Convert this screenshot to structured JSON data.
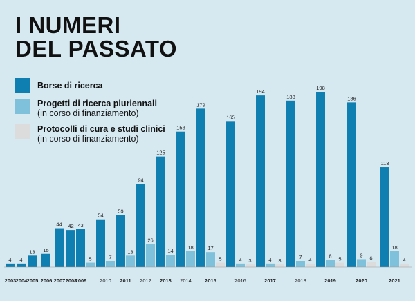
{
  "title_line1": "I NUMERI",
  "title_line2": "DEL PASSATO",
  "colors": {
    "background": "#d6e9f1",
    "borse": "#0f7eb0",
    "progetti": "#7fc0da",
    "protocolli": "#dcdcdc"
  },
  "legend": [
    {
      "label": "Borse di ricerca",
      "sub": "",
      "color": "#0f7eb0"
    },
    {
      "label": "Progetti di ricerca pluriennali",
      "sub": "(in corso di finanziamento)",
      "color": "#7fc0da"
    },
    {
      "label": "Protocolli di cura e studi clinici",
      "sub": "(in corso di finanziamento)",
      "color": "#dcdcdc"
    }
  ],
  "chart_data": {
    "type": "bar",
    "categories": [
      "2003",
      "2004",
      "2005",
      "2006",
      "2007",
      "2008",
      "2009",
      "2010",
      "2011",
      "2012",
      "2013",
      "2014",
      "2015",
      "2016",
      "2017",
      "2018",
      "2019",
      "2020",
      "2021"
    ],
    "bold_categories": [
      "2003",
      "2004",
      "2005",
      "2006",
      "2007",
      "2008",
      "2009",
      "2011",
      "2013",
      "2015",
      "2017",
      "2019",
      "2020",
      "2021"
    ],
    "series": [
      {
        "name": "Borse di ricerca",
        "values": [
          4,
          4,
          13,
          15,
          44,
          42,
          43,
          54,
          59,
          94,
          125,
          153,
          179,
          165,
          194,
          188,
          198,
          186,
          113
        ]
      },
      {
        "name": "Progetti di ricerca pluriennali",
        "values": [
          null,
          null,
          null,
          null,
          null,
          null,
          5,
          7,
          13,
          26,
          14,
          18,
          17,
          4,
          4,
          7,
          8,
          9,
          18
        ]
      },
      {
        "name": "Protocolli di cura e studi clinici",
        "values": [
          null,
          null,
          null,
          null,
          null,
          null,
          null,
          null,
          null,
          null,
          null,
          null,
          5,
          3,
          3,
          4,
          5,
          6,
          4
        ]
      }
    ],
    "ylim": [
      0,
      198
    ]
  }
}
